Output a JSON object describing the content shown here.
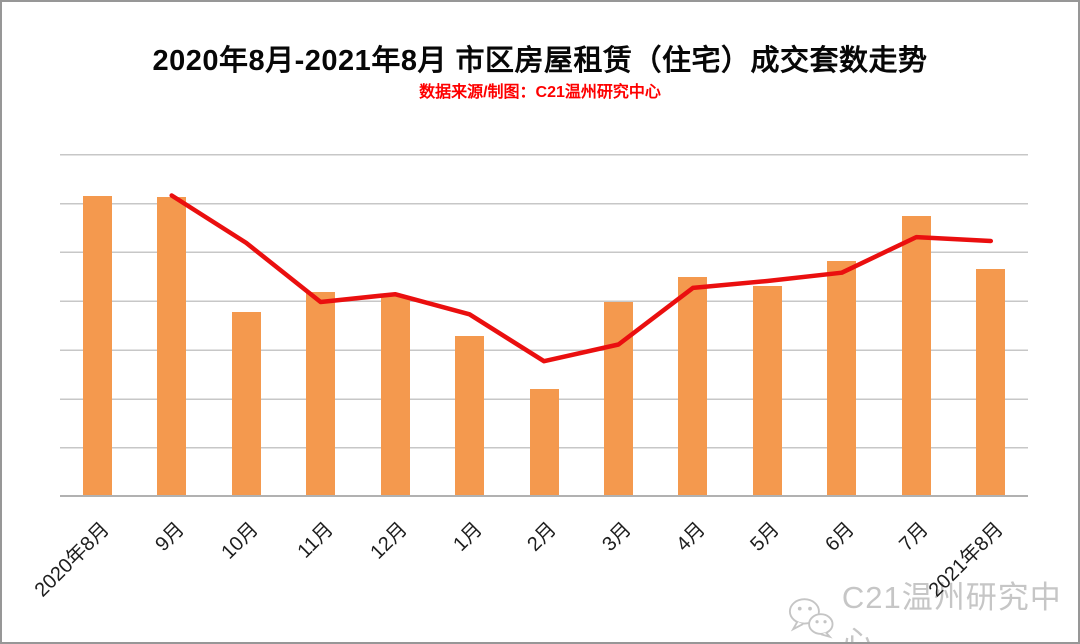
{
  "frame": {
    "background": "#ffffff",
    "border_color": "#979797"
  },
  "header": {
    "title": "2020年8月-2021年8月 市区房屋租赁（住宅）成交套数走势",
    "subtitle": "数据来源/制图：C21温州研究中心",
    "title_color": "#070707",
    "subtitle_color": "#fe0000"
  },
  "watermark": {
    "icon": "wechat-icon",
    "text": "C21温州研究中心",
    "color": "#c6c6c6"
  },
  "chart_data": {
    "type": "bar",
    "title": "2020年8月-2021年8月 市区房屋租赁（住宅）成交套数走势",
    "subtitle": "数据来源/制图：C21温州研究中心",
    "categories": [
      "2020年8月",
      "9月",
      "10月",
      "11月",
      "12月",
      "1月",
      "2月",
      "3月",
      "4月",
      "5月",
      "6月",
      "7月",
      "2021年8月"
    ],
    "series": [
      {
        "name": "bar-series (unlabeled in source)",
        "type": "bar",
        "color": "#f4994e",
        "values": [
          6.15,
          6.12,
          3.76,
          4.18,
          4.09,
          3.28,
          2.19,
          3.98,
          4.49,
          4.3,
          4.81,
          5.73,
          4.65
        ]
      },
      {
        "name": "line-series (unlabeled in source)",
        "type": "line",
        "color": "#ea0f0f",
        "values": [
          null,
          6.15,
          5.18,
          3.97,
          4.13,
          3.72,
          2.76,
          3.1,
          4.26,
          4.4,
          4.57,
          5.3,
          5.22
        ]
      }
    ],
    "xlabel": "",
    "ylabel": "",
    "y_axis": {
      "tick_labels_visible": false,
      "unit": "relative gridline units (y-axis carries no numbers in source image)",
      "min": 0,
      "max": 7,
      "gridline_interval": 1
    },
    "legend": "none",
    "grid": true,
    "x_tick_rotation_deg": 45,
    "data_labels": "none"
  }
}
